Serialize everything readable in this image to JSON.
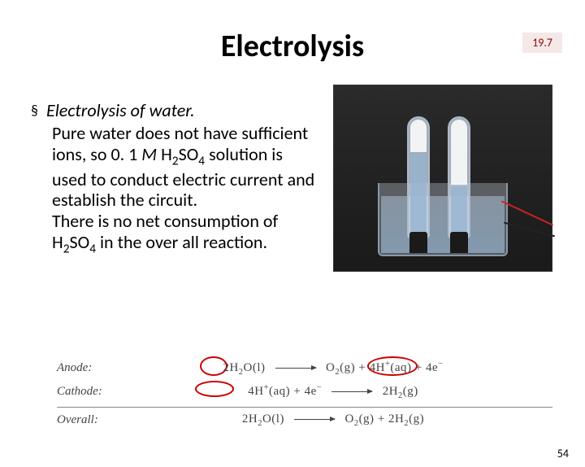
{
  "section_number": "19.7",
  "title": "Electrolysis",
  "bullet_heading": "Electrolysis of water.",
  "paragraph1_pre": "Pure water does not have sufficient ions, so 0. 1 ",
  "paragraph1_M": "M",
  "paragraph1_post": " solution is used to conduct electric current and establish the circuit.",
  "formula_h2so4": "H",
  "paragraph2_pre": "There is no net consumption of ",
  "paragraph2_post": " in the over all reaction.",
  "equations": {
    "anode_label": "Anode:",
    "anode_left": "2H",
    "anode_o_l": "O(l)",
    "anode_right_o2": "O",
    "anode_g": "(g)",
    "anode_plus": " + ",
    "anode_4h": "4H",
    "anode_aq": "(aq)",
    "anode_4e": " + 4e",
    "cathode_label": "Cathode:",
    "cathode_left_4h": "4H",
    "cathode_aq": "(aq)",
    "cathode_4e": " + 4e",
    "cathode_right_2h2": "2H",
    "cathode_g": "(g)",
    "overall_label": "Overall:",
    "overall_left": "2H",
    "overall_o_l": "O(l)",
    "overall_o2": "O",
    "overall_2h2": " + 2H"
  },
  "page_number": "54",
  "colors": {
    "badge_bg": "#f5e8e8",
    "badge_text": "#8b0000",
    "circle": "#cc0000",
    "wire_red": "#cc2222",
    "wire_black": "#222222"
  }
}
